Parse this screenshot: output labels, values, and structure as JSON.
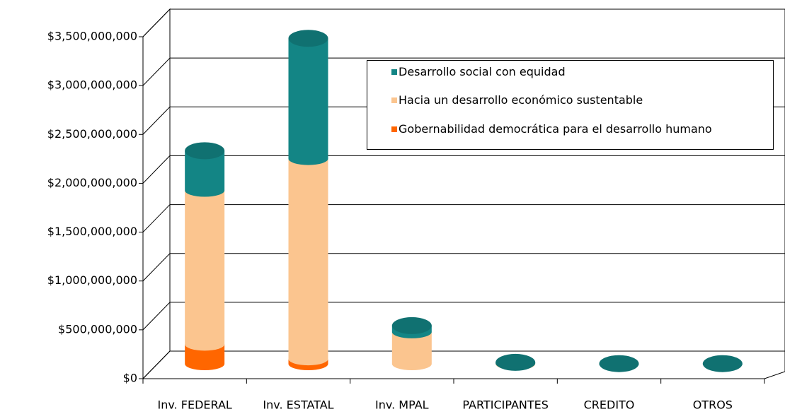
{
  "chart_data": {
    "type": "bar3d_stacked_cylinder",
    "categories": [
      "Inv. FEDERAL",
      "Inv. ESTATAL",
      "Inv. MPAL",
      "PARTICIPANTES",
      "CREDITO",
      "OTROS"
    ],
    "series": [
      {
        "name": "Gobernabilidad democrática para el desarrollo humano",
        "color": "#ff6600",
        "values": [
          200000000,
          50000000,
          0,
          0,
          0,
          0
        ]
      },
      {
        "name": "Hacia un desarrollo económico sustentable",
        "color": "#fbc58f",
        "values": [
          1575000000,
          2050000000,
          326000000,
          5000000,
          0,
          0
        ]
      },
      {
        "name": "Desarrollo social con equidad",
        "color": "#138585",
        "values": [
          406000000,
          1232000000,
          65000000,
          10000000,
          2000000,
          2000000
        ]
      }
    ],
    "ylim": [
      0,
      3500000000
    ],
    "yticks": [
      {
        "value": 0,
        "label": "$0"
      },
      {
        "value": 500000000,
        "label": "$500,000,000"
      },
      {
        "value": 1000000000,
        "label": "$1,000,000,000"
      },
      {
        "value": 1500000000,
        "label": "$1,500,000,000"
      },
      {
        "value": 2000000000,
        "label": "$2,000,000,000"
      },
      {
        "value": 2500000000,
        "label": "$2,500,000,000"
      },
      {
        "value": 3000000000,
        "label": "$3,000,000,000"
      },
      {
        "value": 3500000000,
        "label": "$3,500,000,000"
      }
    ],
    "grid": true
  }
}
